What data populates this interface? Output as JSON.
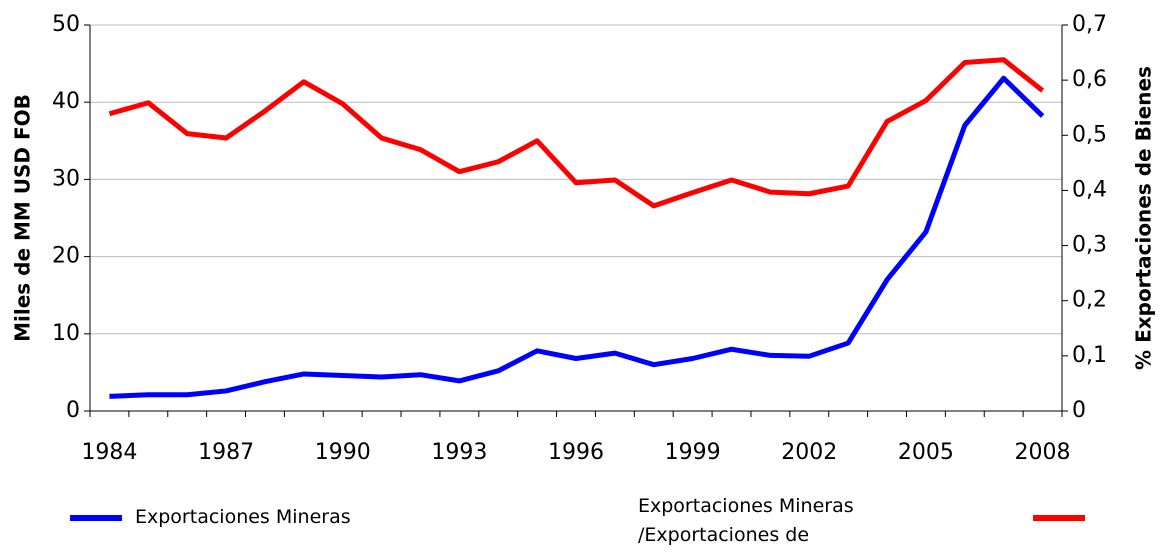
{
  "chart_data": {
    "type": "line",
    "categories": [
      "1984",
      null,
      null,
      "1987",
      null,
      null,
      "1990",
      null,
      null,
      "1993",
      null,
      null,
      "1996",
      null,
      null,
      "1999",
      null,
      null,
      "2002",
      null,
      null,
      "2005",
      null,
      null,
      "2008"
    ],
    "y_label": "Miles de MM USD FOB",
    "y2_label": "% Exportaciones de Bienes",
    "ylim": [
      0,
      50
    ],
    "yticks": [
      0,
      10,
      20,
      30,
      40,
      50
    ],
    "y2lim": [
      0,
      0.7
    ],
    "y2ticks": [
      0,
      {
        "value": 0.1,
        "label": "0,1"
      },
      {
        "value": 0.2,
        "label": "0,2"
      },
      {
        "value": 0.3,
        "label": "0,3"
      },
      {
        "value": 0.4,
        "label": "0,4"
      },
      {
        "value": 0.5,
        "label": "0,5"
      },
      {
        "value": 0.6,
        "label": "0,6"
      },
      {
        "value": 0.7,
        "label": "0,7"
      }
    ],
    "grid": true,
    "series": [
      {
        "name": "Exportaciones Mineras",
        "color": "#0000ff",
        "values": [
          1.9,
          2.1,
          2.1,
          2.6,
          3.8,
          4.8,
          4.6,
          4.4,
          4.7,
          3.9,
          5.2,
          7.8,
          6.8,
          7.5,
          6.0,
          6.8,
          8.0,
          7.2,
          7.1,
          8.8,
          17.0,
          23.2,
          37.0,
          43.1,
          38.2
        ]
      },
      {
        "name": "Exportaciones Mineras /Exportaciones de Bienes",
        "color": "#ff0000",
        "axis": "y2",
        "values": [
          0.539,
          0.559,
          0.503,
          0.495,
          0.544,
          0.597,
          0.557,
          0.495,
          0.474,
          0.434,
          0.452,
          0.49,
          0.414,
          0.419,
          0.372,
          0.396,
          0.419,
          0.397,
          0.394,
          0.408,
          0.525,
          0.563,
          0.632,
          0.637,
          0.581
        ]
      }
    ]
  }
}
